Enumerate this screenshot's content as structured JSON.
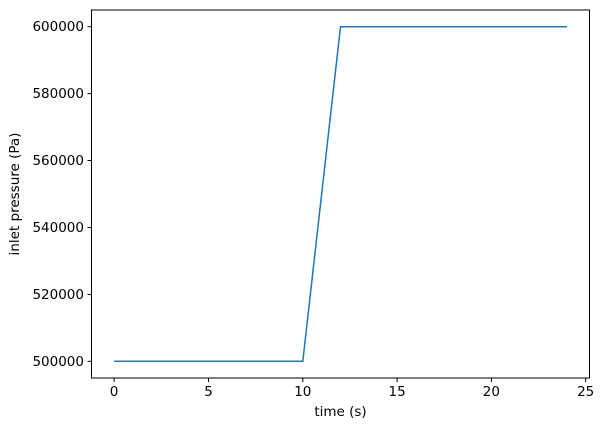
{
  "figure": {
    "background_color": "#ffffff",
    "frame_color": "#000000",
    "text_color": "#000000"
  },
  "chart_data": {
    "type": "line",
    "title": "",
    "xlabel": "time (s)",
    "ylabel": "inlet pressure (Pa)",
    "series": [
      {
        "name": "inlet pressure",
        "x": [
          0,
          10,
          12,
          24
        ],
        "y": [
          500000,
          500000,
          600000,
          600000
        ],
        "color": "#1f77b4"
      }
    ],
    "xticks": [
      0,
      5,
      10,
      15,
      20,
      25
    ],
    "yticks": [
      500000,
      520000,
      540000,
      560000,
      580000,
      600000
    ],
    "xlim": [
      -1.2,
      25.2
    ],
    "ylim": [
      495000,
      605000
    ],
    "grid": false,
    "legend_position": "none",
    "line_color": "#1f77b4"
  }
}
